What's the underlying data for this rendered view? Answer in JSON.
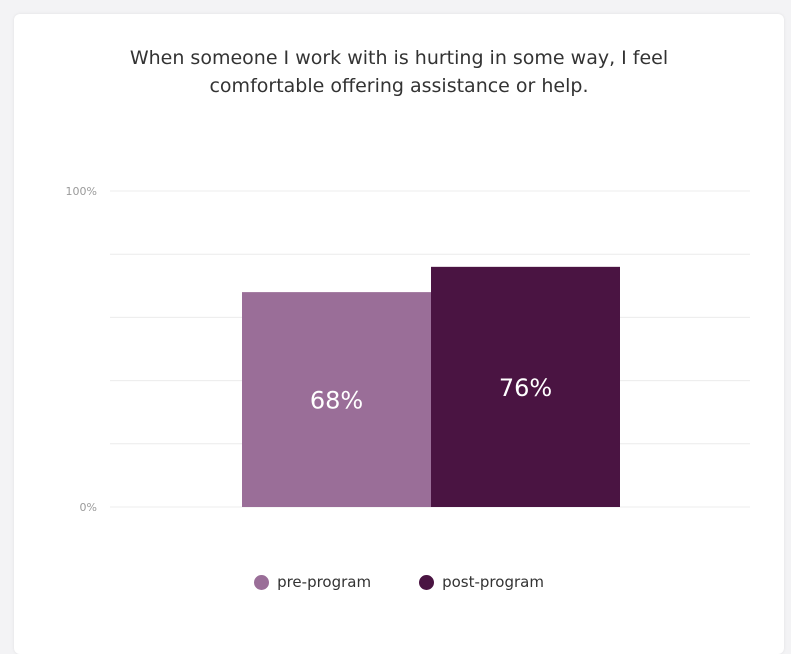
{
  "chart_data": {
    "type": "bar",
    "title_lines": [
      "When someone I work with is hurting in some way, I feel",
      "comfortable offering assistance or help."
    ],
    "categories": [
      "pre-program",
      "post-program"
    ],
    "values": [
      68,
      76
    ],
    "value_labels": [
      "68%",
      "76%"
    ],
    "colors": [
      "#9a6e98",
      "#4a1442"
    ],
    "ylim": [
      0,
      100
    ],
    "y_tick_labels": [
      "0%",
      "100%"
    ],
    "grid": true,
    "legend_position": "bottom-center"
  }
}
